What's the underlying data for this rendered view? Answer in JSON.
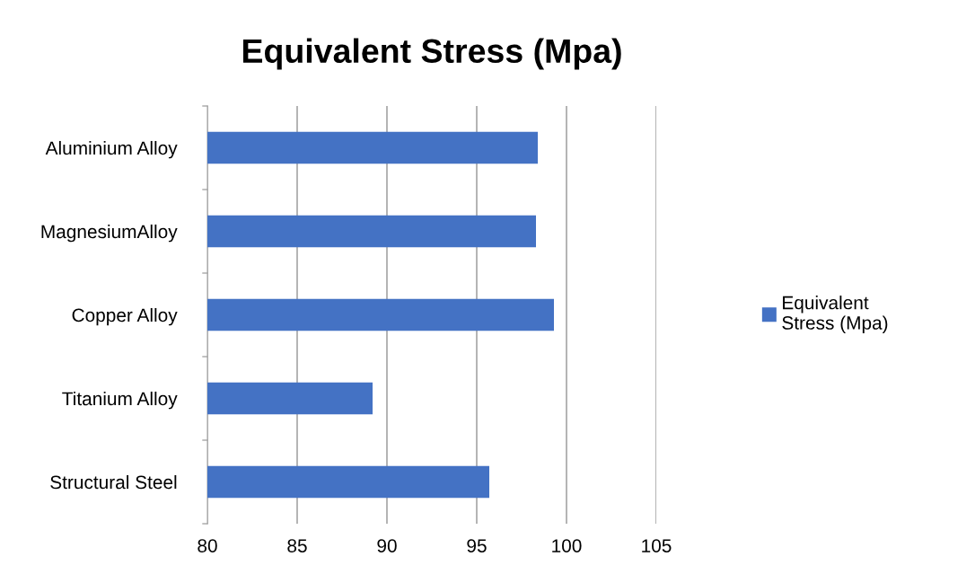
{
  "chart_data": {
    "type": "bar",
    "orientation": "horizontal",
    "title": "Equivalent Stress (Mpa)",
    "categories": [
      "Aluminium Alloy",
      "MagnesiumAlloy",
      "Copper Alloy",
      "Titanium Alloy",
      "Structural Steel"
    ],
    "series": [
      {
        "name": "Equivalent Stress (Mpa)",
        "color": "#4472c4",
        "values": [
          98.4,
          98.3,
          99.3,
          89.2,
          95.7
        ]
      }
    ],
    "xlim": [
      80,
      105
    ],
    "xticks": [
      80,
      85,
      90,
      95,
      100,
      105
    ],
    "grid": "x",
    "legend": "right"
  }
}
